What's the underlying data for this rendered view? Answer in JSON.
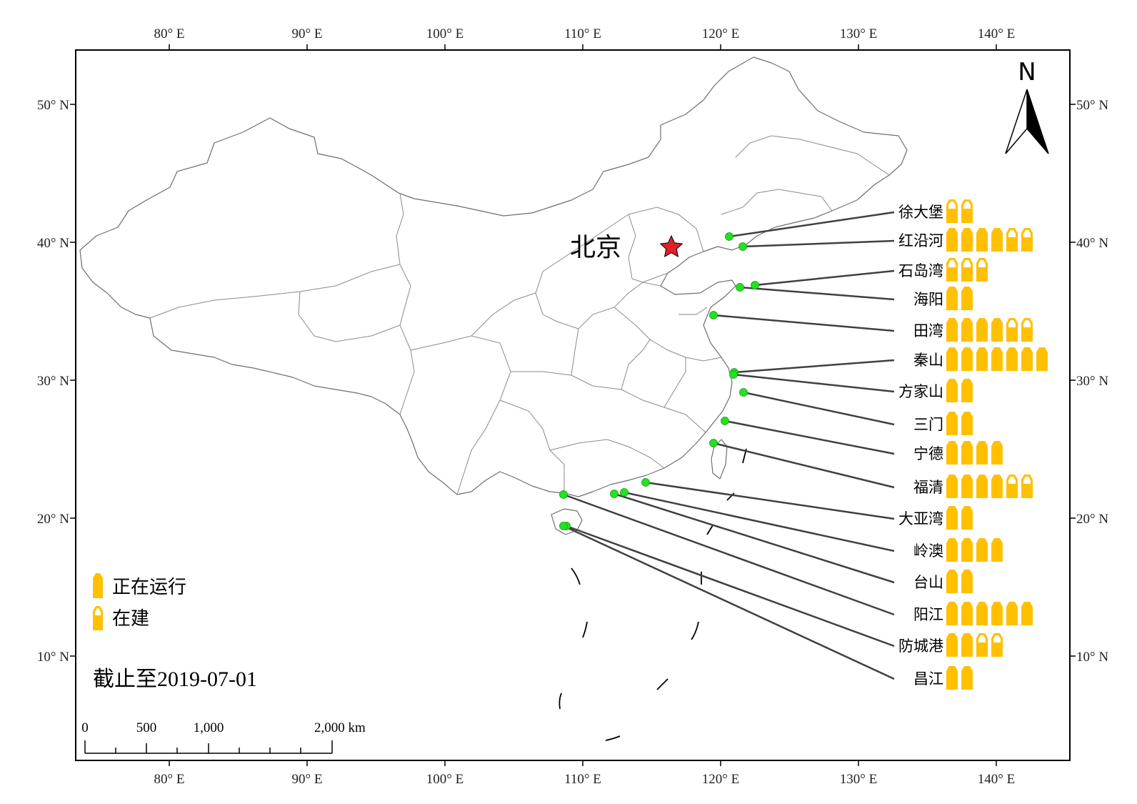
{
  "colors": {
    "reactor": "#FFC000",
    "site_marker": "#21E321",
    "capital_star": "#E0202A",
    "leader_line": "#404040",
    "boundary": "#7a7a7a"
  },
  "axes": {
    "top_labels": [
      "80° E",
      "90° E",
      "100° E",
      "110° E",
      "120° E",
      "130° E",
      "140° E"
    ],
    "bottom_labels": [
      "80° E",
      "90° E",
      "100° E",
      "110° E",
      "120° E",
      "130° E",
      "140° E"
    ],
    "left_labels": [
      "50° N",
      "40° N",
      "30° N",
      "20° N",
      "10° N"
    ],
    "right_labels": [
      "50° N",
      "40° N",
      "30° N",
      "20° N",
      "10° N"
    ]
  },
  "north_arrow": {
    "label": "N",
    "icon": "north-arrow-icon"
  },
  "capital": {
    "label": "北京",
    "icon": "star-icon"
  },
  "legend": {
    "operating": "正在运行",
    "construction": "在建"
  },
  "date_note": "截止至2019-07-01",
  "scale_bar": {
    "labels": [
      "0",
      "500",
      "1,000",
      "2,000 km"
    ]
  },
  "plants": [
    {
      "name": "徐大堡",
      "operating": 0,
      "construction": 2
    },
    {
      "name": "红沿河",
      "operating": 4,
      "construction": 2
    },
    {
      "name": "石岛湾",
      "operating": 0,
      "construction": 3
    },
    {
      "name": "海阳",
      "operating": 2,
      "construction": 0
    },
    {
      "name": "田湾",
      "operating": 4,
      "construction": 2
    },
    {
      "name": "秦山",
      "operating": 7,
      "construction": 0
    },
    {
      "name": "方家山",
      "operating": 2,
      "construction": 0
    },
    {
      "name": "三门",
      "operating": 2,
      "construction": 0
    },
    {
      "name": "宁德",
      "operating": 4,
      "construction": 0
    },
    {
      "name": "福清",
      "operating": 4,
      "construction": 2
    },
    {
      "name": "大亚湾",
      "operating": 2,
      "construction": 0
    },
    {
      "name": "岭澳",
      "operating": 4,
      "construction": 0
    },
    {
      "name": "台山",
      "operating": 2,
      "construction": 0
    },
    {
      "name": "阳江",
      "operating": 6,
      "construction": 0
    },
    {
      "name": "防城港",
      "operating": 2,
      "construction": 2
    },
    {
      "name": "昌江",
      "operating": 2,
      "construction": 0
    }
  ]
}
